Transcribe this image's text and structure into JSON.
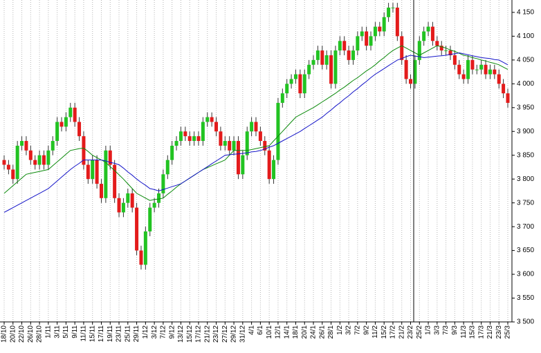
{
  "chart_data": {
    "type": "candlestick",
    "categories": [
      "18/10",
      null,
      "20/10",
      null,
      "22/10",
      null,
      "26/10",
      null,
      "28/10",
      null,
      "1/11",
      null,
      "3/11",
      null,
      "5/11",
      null,
      "9/11",
      null,
      "11/11",
      null,
      "15/11",
      null,
      "17/11",
      null,
      "19/11",
      null,
      "23/11",
      null,
      "25/11",
      null,
      "29/11",
      null,
      "1/12",
      null,
      "3/12",
      null,
      "7/12",
      null,
      "9/12",
      null,
      "13/12",
      null,
      "15/12",
      null,
      "17/12",
      null,
      "21/12",
      null,
      "23/12",
      null,
      "27/12",
      null,
      "29/12",
      null,
      "31/12",
      null,
      "4/1",
      null,
      "6/1",
      null,
      "10/1",
      null,
      "12/1",
      null,
      "14/1",
      null,
      "18/1",
      null,
      "20/1",
      null,
      "24/1",
      null,
      "26/1",
      null,
      "28/1",
      null,
      "1/2",
      null,
      "3/2",
      null,
      "7/2",
      null,
      "9/2",
      null,
      "11/2",
      null,
      "15/2",
      null,
      "17/2",
      null,
      "21/2",
      null,
      "23/2",
      null,
      "25/2",
      null,
      "1/3",
      null,
      "3/3",
      null,
      "7/3",
      null,
      "9/3",
      null,
      "11/3",
      null,
      "15/3",
      null,
      "17/3",
      null,
      "21/3",
      null,
      "23/3",
      null,
      "25/3"
    ],
    "open": [
      3840,
      3830,
      3820,
      3800,
      3870,
      3880,
      3860,
      3840,
      3830,
      3850,
      3830,
      3860,
      3880,
      3920,
      3910,
      3930,
      3950,
      3920,
      3890,
      3830,
      3800,
      3840,
      3790,
      3760,
      3860,
      3830,
      3760,
      3730,
      3750,
      3770,
      3740,
      3650,
      3620,
      3690,
      3740,
      3750,
      3770,
      3810,
      3840,
      3870,
      3880,
      3900,
      3890,
      3880,
      3890,
      3880,
      3920,
      3930,
      3920,
      3900,
      3870,
      3880,
      3860,
      3880,
      3810,
      3850,
      3900,
      3920,
      3900,
      3880,
      3860,
      3800,
      3840,
      3960,
      3980,
      4000,
      4010,
      4020,
      3980,
      4020,
      4040,
      4050,
      4070,
      4040,
      4060,
      4000,
      4070,
      4090,
      4070,
      4050,
      4070,
      4100,
      4110,
      4080,
      4100,
      4120,
      4110,
      4140,
      4160,
      4160,
      4100,
      4050,
      4010,
      4000,
      4050,
      4090,
      4110,
      4120,
      4090,
      4080,
      4070,
      4070,
      4060,
      4040,
      4020,
      4010,
      4050,
      4030,
      4030,
      4040,
      4020,
      4030,
      4020,
      4000,
      3980
    ],
    "high": [
      3850,
      3840,
      3830,
      3880,
      3890,
      3890,
      3870,
      3850,
      3860,
      3860,
      3870,
      3890,
      3930,
      3930,
      3940,
      3960,
      3960,
      3930,
      3900,
      3840,
      3850,
      3850,
      3800,
      3870,
      3870,
      3840,
      3770,
      3760,
      3780,
      3780,
      3750,
      3660,
      3700,
      3750,
      3760,
      3780,
      3820,
      3850,
      3880,
      3890,
      3910,
      3910,
      3900,
      3900,
      3900,
      3930,
      3940,
      3940,
      3930,
      3910,
      3890,
      3890,
      3890,
      3890,
      3860,
      3910,
      3930,
      3930,
      3910,
      3890,
      3870,
      3850,
      3970,
      3990,
      4010,
      4020,
      4030,
      4030,
      4030,
      4050,
      4060,
      4080,
      4080,
      4070,
      4070,
      4080,
      4100,
      4100,
      4080,
      4080,
      4110,
      4120,
      4120,
      4110,
      4130,
      4130,
      4150,
      4170,
      4170,
      4170,
      4110,
      4060,
      4020,
      4060,
      4100,
      4120,
      4130,
      4130,
      4100,
      4090,
      4080,
      4080,
      4070,
      4050,
      4030,
      4060,
      4060,
      4040,
      4050,
      4050,
      4040,
      4040,
      4030,
      4010,
      3990
    ],
    "low": [
      3820,
      3810,
      3790,
      3790,
      3860,
      3850,
      3830,
      3820,
      3820,
      3820,
      3820,
      3850,
      3870,
      3900,
      3900,
      3920,
      3910,
      3880,
      3820,
      3790,
      3790,
      3780,
      3750,
      3750,
      3820,
      3750,
      3720,
      3720,
      3740,
      3730,
      3640,
      3610,
      3610,
      3680,
      3730,
      3740,
      3760,
      3800,
      3830,
      3860,
      3870,
      3880,
      3870,
      3870,
      3870,
      3870,
      3910,
      3910,
      3890,
      3860,
      3860,
      3850,
      3850,
      3800,
      3800,
      3840,
      3890,
      3890,
      3870,
      3850,
      3790,
      3790,
      3830,
      3950,
      3970,
      3990,
      4000,
      3970,
      3970,
      4010,
      4030,
      4040,
      4030,
      4030,
      3990,
      3990,
      4060,
      4060,
      4040,
      4040,
      4060,
      4090,
      4070,
      4070,
      4090,
      4100,
      4100,
      4130,
      4150,
      4090,
      4040,
      4000,
      3990,
      3990,
      4040,
      4080,
      4100,
      4080,
      4070,
      4060,
      4060,
      4050,
      4030,
      4010,
      4000,
      4000,
      4020,
      4020,
      4020,
      4010,
      4010,
      4010,
      3990,
      3970,
      3950
    ],
    "close": [
      3830,
      3820,
      3800,
      3870,
      3880,
      3860,
      3840,
      3830,
      3850,
      3830,
      3860,
      3880,
      3920,
      3910,
      3930,
      3950,
      3920,
      3890,
      3830,
      3800,
      3840,
      3790,
      3760,
      3860,
      3830,
      3760,
      3730,
      3750,
      3770,
      3740,
      3650,
      3620,
      3690,
      3740,
      3750,
      3770,
      3810,
      3840,
      3870,
      3880,
      3900,
      3890,
      3880,
      3890,
      3880,
      3920,
      3930,
      3920,
      3900,
      3870,
      3880,
      3860,
      3880,
      3810,
      3850,
      3900,
      3920,
      3900,
      3880,
      3860,
      3800,
      3840,
      3960,
      3980,
      4000,
      4010,
      4020,
      3980,
      4020,
      4040,
      4050,
      4070,
      4040,
      4060,
      4000,
      4070,
      4090,
      4070,
      4050,
      4070,
      4100,
      4110,
      4080,
      4100,
      4120,
      4110,
      4140,
      4160,
      4160,
      4100,
      4050,
      4010,
      4000,
      4050,
      4090,
      4110,
      4120,
      4090,
      4080,
      4070,
      4070,
      4060,
      4040,
      4020,
      4010,
      4050,
      4030,
      4030,
      4040,
      4020,
      4030,
      4020,
      4000,
      3980,
      3960
    ],
    "up_color": "#22c322",
    "down_color": "#e31b1b",
    "lines": [
      {
        "color": "#0b8a0b",
        "values": [
          3770,
          3778,
          3786,
          3794,
          3802,
          3810,
          3812,
          3814,
          3816,
          3818,
          3820,
          3828,
          3836,
          3844,
          3852,
          3860,
          3862,
          3864,
          3865,
          3858,
          3850,
          3845,
          3840,
          3835,
          3826,
          3818,
          3809,
          3800,
          3790,
          3780,
          3770,
          3765,
          3760,
          3755,
          3757,
          3758,
          3760,
          3768,
          3775,
          3783,
          3790,
          3796,
          3802,
          3808,
          3814,
          3820,
          3824,
          3828,
          3832,
          3836,
          3840,
          3850,
          3860,
          3860,
          3860,
          3860,
          3862,
          3864,
          3866,
          3868,
          3870,
          3880,
          3890,
          3900,
          3910,
          3920,
          3930,
          3935,
          3940,
          3945,
          3950,
          3956,
          3962,
          3968,
          3974,
          3980,
          3987,
          3993,
          4000,
          4007,
          4013,
          4020,
          4027,
          4033,
          4040,
          4048,
          4055,
          4063,
          4070,
          4075,
          4080,
          4075,
          4070,
          4065,
          4060,
          4065,
          4070,
          4075,
          4080,
          4078,
          4075,
          4071,
          4068,
          4064,
          4060,
          4058,
          4055,
          4053,
          4050,
          4048,
          4045,
          4043,
          4040,
          4035,
          4030
        ]
      },
      {
        "color": "#1414c8",
        "values": [
          3730,
          3735,
          3740,
          3745,
          3750,
          3755,
          3760,
          3765,
          3770,
          3775,
          3780,
          3788,
          3796,
          3804,
          3812,
          3820,
          3827,
          3833,
          3840,
          3840,
          3840,
          3840,
          3840,
          3838,
          3835,
          3833,
          3830,
          3823,
          3815,
          3808,
          3800,
          3793,
          3787,
          3780,
          3778,
          3775,
          3778,
          3781,
          3784,
          3787,
          3790,
          3796,
          3802,
          3808,
          3814,
          3820,
          3826,
          3832,
          3838,
          3844,
          3850,
          3851,
          3852,
          3853,
          3854,
          3855,
          3857,
          3858,
          3860,
          3863,
          3867,
          3870,
          3875,
          3880,
          3885,
          3890,
          3895,
          3900,
          3906,
          3912,
          3918,
          3924,
          3930,
          3938,
          3945,
          3953,
          3960,
          3968,
          3975,
          3983,
          3990,
          3998,
          4005,
          4013,
          4020,
          4026,
          4032,
          4038,
          4044,
          4050,
          4053,
          4057,
          4060,
          4058,
          4057,
          4055,
          4056,
          4057,
          4058,
          4059,
          4060,
          4062,
          4063,
          4065,
          4063,
          4061,
          4059,
          4057,
          4055,
          4054,
          4053,
          4051,
          4050,
          4045,
          4040
        ]
      }
    ],
    "ylim": [
      3500,
      4176
    ],
    "yticks": [
      {
        "value": 3500,
        "label": "3 500"
      },
      {
        "value": 3550,
        "label": "3 550"
      },
      {
        "value": 3600,
        "label": "3 600"
      },
      {
        "value": 3650,
        "label": "3 650"
      },
      {
        "value": 3700,
        "label": "3 700"
      },
      {
        "value": 3750,
        "label": "3 750"
      },
      {
        "value": 3800,
        "label": "3 800"
      },
      {
        "value": 3850,
        "label": "3 850"
      },
      {
        "value": 3900,
        "label": "3 900"
      },
      {
        "value": 3950,
        "label": "3 950"
      },
      {
        "value": 4000,
        "label": "4 000"
      },
      {
        "value": 4050,
        "label": "4 050"
      },
      {
        "value": 4100,
        "label": "4 100"
      },
      {
        "value": 4150,
        "label": "4 150"
      }
    ],
    "xgrid": true
  }
}
